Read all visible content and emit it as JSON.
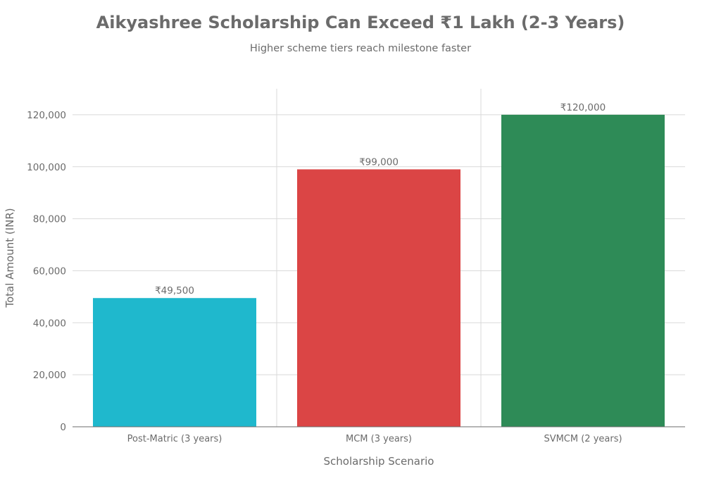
{
  "chart_data": {
    "type": "bar",
    "title": "Aikyashree Scholarship Can Exceed ₹1 Lakh (2-3 Years)",
    "subtitle": "Higher scheme tiers reach milestone faster",
    "xlabel": "Scholarship Scenario",
    "ylabel": "Total Amount (INR)",
    "categories": [
      "Post-Matric (3 years)",
      "MCM (3 years)",
      "SVMCM (2 years)"
    ],
    "values": [
      49500,
      99000,
      120000
    ],
    "data_labels": [
      "₹49,500",
      "₹99,000",
      "₹120,000"
    ],
    "colors": [
      "#1fb8cd",
      "#db4545",
      "#2e8b57"
    ],
    "ylim": [
      0,
      130000
    ],
    "yticks": [
      0,
      20000,
      40000,
      60000,
      80000,
      100000,
      120000
    ],
    "ytick_labels": [
      "0",
      "20,000",
      "40,000",
      "60,000",
      "80,000",
      "100,000",
      "120,000"
    ],
    "grid": true,
    "legend": "none"
  }
}
